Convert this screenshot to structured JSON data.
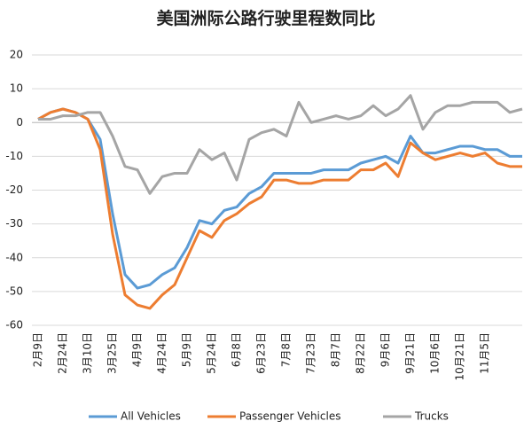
{
  "chart_data": {
    "type": "line",
    "title": "美国洲际公路行驶里程数同比",
    "categories": [
      "2月9日",
      null,
      "2月24日",
      null,
      "3月10日",
      null,
      "3月25日",
      null,
      "4月9日",
      null,
      "4月24日",
      null,
      "5月9日",
      null,
      "5月24日",
      null,
      "6月8日",
      null,
      "6月23日",
      null,
      "7月8日",
      null,
      "7月23日",
      null,
      "8月7日",
      null,
      "8月22日",
      null,
      "9月6日",
      null,
      "9月21日",
      null,
      "10月6日",
      null,
      "10月21日",
      null,
      "11月5日",
      null,
      null,
      null
    ],
    "series": [
      {
        "name": "All Vehicles",
        "color": "#5b9bd5",
        "values": [
          1,
          3,
          4,
          3,
          1,
          -5,
          -27,
          -45,
          -49,
          -48,
          -45,
          -43,
          -37,
          -29,
          -30,
          -26,
          -25,
          -21,
          -19,
          -15,
          -15,
          -15,
          -15,
          -14,
          -14,
          -14,
          -12,
          -11,
          -10,
          -12,
          -4,
          -9,
          -9,
          -8,
          -7,
          -7,
          -8,
          -8,
          -10,
          -10
        ]
      },
      {
        "name": "Passenger Vehicles",
        "color": "#ed7d31",
        "values": [
          1,
          3,
          4,
          3,
          1,
          -8,
          -33,
          -51,
          -54,
          -55,
          -51,
          -48,
          -40,
          -32,
          -34,
          -29,
          -27,
          -24,
          -22,
          -17,
          -17,
          -18,
          -18,
          -17,
          -17,
          -17,
          -14,
          -14,
          -12,
          -16,
          -6,
          -9,
          -11,
          -10,
          -9,
          -10,
          -9,
          -12,
          -13,
          -13
        ]
      },
      {
        "name": "Trucks",
        "color": "#a5a5a5",
        "values": [
          1,
          1,
          2,
          2,
          3,
          3,
          -4,
          -13,
          -14,
          -21,
          -16,
          -15,
          -15,
          -8,
          -11,
          -9,
          -17,
          -5,
          -3,
          -2,
          -4,
          6,
          0,
          1,
          2,
          1,
          2,
          5,
          2,
          4,
          8,
          -2,
          3,
          5,
          5,
          6,
          6,
          6,
          3,
          4
        ]
      }
    ],
    "ylim": [
      -60,
      20
    ],
    "yticks": [
      -60,
      -50,
      -40,
      -30,
      -20,
      -10,
      0,
      10,
      20
    ],
    "grid": true
  }
}
